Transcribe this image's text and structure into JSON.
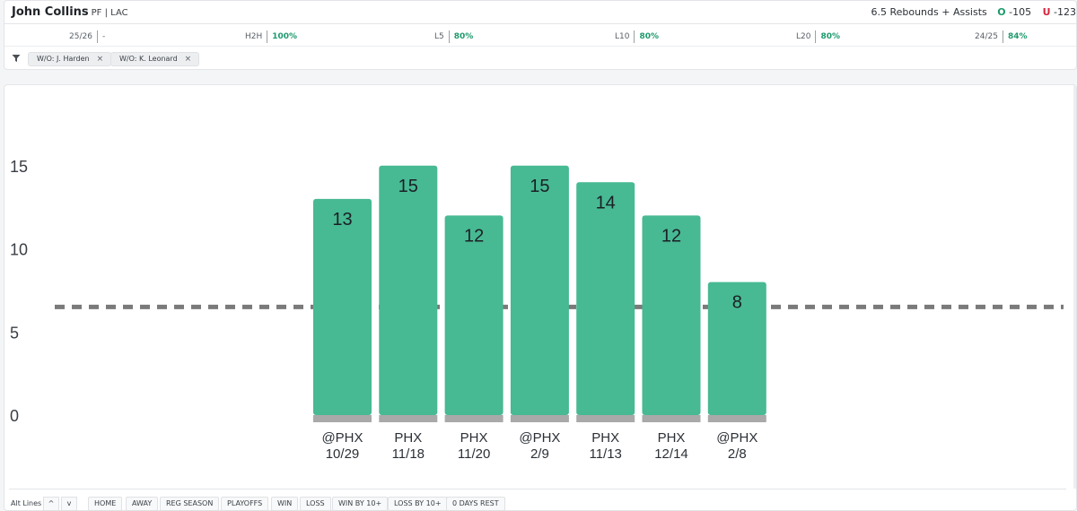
{
  "player": {
    "name": "John Collins",
    "meta": "PF | LAC"
  },
  "prop": {
    "label": "6.5 Rebounds + Assists",
    "over_letter": "O",
    "over_odds": "-105",
    "under_letter": "U",
    "under_odds": "-123"
  },
  "stats": [
    {
      "label": "25/26",
      "value": "-"
    },
    {
      "label": "H2H",
      "value": "100%"
    },
    {
      "label": "L5",
      "value": "80%"
    },
    {
      "label": "L10",
      "value": "80%"
    },
    {
      "label": "L20",
      "value": "80%"
    },
    {
      "label": "24/25",
      "value": "84%"
    }
  ],
  "filters": [
    {
      "label": "W/O: J. Harden",
      "remove": "×"
    },
    {
      "label": "W/O: K. Leonard",
      "remove": "×"
    }
  ],
  "chart_data": {
    "type": "bar",
    "categories": [
      [
        "@PHX",
        "10/29"
      ],
      [
        "PHX",
        "11/18"
      ],
      [
        "PHX",
        "11/20"
      ],
      [
        "@PHX",
        "2/9"
      ],
      [
        "PHX",
        "11/13"
      ],
      [
        "PHX",
        "12/14"
      ],
      [
        "@PHX",
        "2/8"
      ]
    ],
    "values": [
      13,
      15,
      12,
      15,
      14,
      12,
      8
    ],
    "line": 6.5,
    "yticks": [
      0,
      5,
      10,
      15
    ],
    "ylim": [
      0,
      15
    ],
    "bar_color": "#47b993",
    "base_color": "#a9a9a9",
    "line_color": "#7a7a7a",
    "grid": false
  },
  "bottom": {
    "alt_lines": "Alt Lines",
    "up": "^",
    "down": "v",
    "buttons": [
      "HOME",
      "AWAY",
      "REG SEASON",
      "PLAYOFFS",
      "WIN",
      "LOSS",
      "WIN BY 10+",
      "LOSS BY 10+",
      "0 DAYS REST"
    ]
  }
}
